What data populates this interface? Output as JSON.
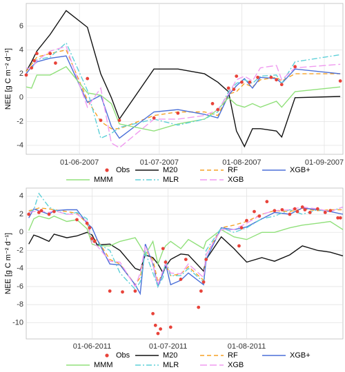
{
  "chart_data": [
    {
      "type": "line",
      "y_label": "NEE [g C m⁻² d⁻¹]",
      "xlim": [
        "2007-05-12",
        "2007-09-08"
      ],
      "ylim": [
        -4.75,
        7.9
      ],
      "xticks": [
        {
          "value": "2007-06-01",
          "label": "01-06-2007"
        },
        {
          "value": "2007-07-01",
          "label": "01-07-2007"
        },
        {
          "value": "2007-08-01",
          "label": "01-08-2007"
        },
        {
          "value": "2007-09-01",
          "label": "01-09-2007"
        }
      ],
      "yticks": [
        -4,
        -2,
        0,
        2,
        4,
        6
      ],
      "grid": true,
      "x": [
        "2007-05-12",
        "2007-05-14",
        "2007-05-16",
        "2007-05-21",
        "2007-05-27",
        "2007-06-04",
        "2007-06-09",
        "2007-06-13",
        "2007-06-16",
        "2007-06-29",
        "2007-07-08",
        "2007-07-18",
        "2007-07-23",
        "2007-07-27",
        "2007-07-30",
        "2007-08-02",
        "2007-08-05",
        "2007-08-08",
        "2007-08-14",
        "2007-08-16",
        "2007-08-21",
        "2007-09-07"
      ],
      "series": [
        {
          "name": "Obs",
          "color": "#e8433a",
          "style": "points",
          "x": [
            "2007-05-12",
            "2007-05-14",
            "2007-05-15",
            "2007-05-16",
            "2007-05-21",
            "2007-05-23",
            "2007-06-04",
            "2007-06-09",
            "2007-06-16",
            "2007-06-29",
            "2007-07-08",
            "2007-07-21",
            "2007-07-23",
            "2007-07-27",
            "2007-07-29",
            "2007-07-30",
            "2007-08-01",
            "2007-08-04",
            "2007-08-07",
            "2007-08-12",
            "2007-08-14",
            "2007-08-16",
            "2007-08-21",
            "2007-09-07"
          ],
          "values": [
            1.9,
            2.5,
            3.1,
            3.7,
            3.7,
            2.9,
            1.6,
            -1.9,
            -1.9,
            -1.7,
            -1.3,
            -0.5,
            -1.0,
            0.8,
            0.7,
            1.8,
            1.3,
            1.3,
            1.7,
            1.7,
            1.5,
            1.1,
            2.6,
            1.4
          ]
        },
        {
          "name": "M20",
          "color": "#111111",
          "style": "solid",
          "values": [
            2.2,
            3.0,
            3.9,
            5.3,
            7.3,
            5.9,
            2.0,
            0.0,
            -1.8,
            2.4,
            2.4,
            2.0,
            1.3,
            0.5,
            -2.8,
            -4.1,
            -2.6,
            -2.6,
            -2.8,
            -3.3,
            0.0,
            0.1
          ]
        },
        {
          "name": "RF",
          "color": "#f5a023",
          "style": "dashed",
          "values": [
            2.2,
            2.8,
            3.4,
            3.7,
            4.0,
            -0.2,
            -2.0,
            -2.6,
            -2.6,
            -1.5,
            -1.2,
            -1.2,
            -1.5,
            0.3,
            0.5,
            1.2,
            0.9,
            1.5,
            1.7,
            1.4,
            2.0,
            2.0
          ]
        },
        {
          "name": "XGB+",
          "color": "#4a6fd8",
          "style": "solid",
          "values": [
            2.0,
            2.6,
            3.0,
            3.3,
            3.5,
            -0.4,
            0.2,
            -2.4,
            -3.4,
            -1.2,
            -1.0,
            -1.4,
            -1.7,
            0.2,
            1.0,
            1.6,
            0.8,
            1.7,
            1.6,
            1.2,
            2.4,
            2.0
          ]
        },
        {
          "name": "MMM",
          "color": "#90e07a",
          "style": "solid",
          "values": [
            0.9,
            0.8,
            1.9,
            1.9,
            2.6,
            0.4,
            0.2,
            -0.5,
            -2.2,
            -2.8,
            -2.2,
            -1.8,
            -1.0,
            0.0,
            -0.6,
            -0.8,
            -0.5,
            -0.8,
            -0.3,
            -0.8,
            0.5,
            0.9
          ]
        },
        {
          "name": "MLR",
          "color": "#5dd0d8",
          "style": "dashdot",
          "values": [
            2.5,
            2.4,
            3.2,
            3.4,
            4.6,
            0.6,
            -3.4,
            -3.0,
            -2.5,
            -1.8,
            -2.3,
            -1.8,
            -1.2,
            0.5,
            1.2,
            1.5,
            1.2,
            1.8,
            1.9,
            1.2,
            3.0,
            3.6
          ]
        },
        {
          "name": "XGB",
          "color": "#f09af0",
          "style": "longdash",
          "values": [
            2.5,
            2.4,
            3.1,
            3.9,
            4.3,
            -0.8,
            0.8,
            -3.8,
            -4.2,
            -1.8,
            -1.8,
            -1.5,
            -1.0,
            0.3,
            1.5,
            1.8,
            1.4,
            2.5,
            2.7,
            1.5,
            2.5,
            2.8
          ]
        }
      ]
    },
    {
      "type": "line",
      "y_label": "NEE [g C m⁻² d⁻¹]",
      "xlim": [
        "2011-05-06",
        "2011-09-08"
      ],
      "ylim": [
        -11.8,
        4.9
      ],
      "xticks": [
        {
          "value": "2011-06-01",
          "label": "01-06-2011"
        },
        {
          "value": "2011-07-01",
          "label": "01-07-2011"
        },
        {
          "value": "2011-08-01",
          "label": "01-08-2011"
        }
      ],
      "yticks": [
        -10,
        -8,
        -6,
        -4,
        -2,
        0,
        2,
        4
      ],
      "grid": true,
      "x": [
        "2011-05-07",
        "2011-05-09",
        "2011-05-11",
        "2011-05-15",
        "2011-05-17",
        "2011-05-22",
        "2011-05-26",
        "2011-05-30",
        "2011-06-01",
        "2011-06-03",
        "2011-06-08",
        "2011-06-12",
        "2011-06-18",
        "2011-06-20",
        "2011-06-22",
        "2011-06-25",
        "2011-06-27",
        "2011-06-29",
        "2011-06-30",
        "2011-07-02",
        "2011-07-06",
        "2011-07-09",
        "2011-07-15",
        "2011-07-16",
        "2011-07-22",
        "2011-07-27",
        "2011-08-01",
        "2011-08-07",
        "2011-08-12",
        "2011-08-18",
        "2011-08-23",
        "2011-08-29",
        "2011-09-03",
        "2011-09-08"
      ],
      "series": [
        {
          "name": "Obs",
          "color": "#e8433a",
          "style": "points",
          "x": [
            "2011-05-07",
            "2011-05-11",
            "2011-05-12",
            "2011-05-15",
            "2011-05-17",
            "2011-05-26",
            "2011-05-30",
            "2011-05-31",
            "2011-06-01",
            "2011-06-02",
            "2011-06-08",
            "2011-06-13",
            "2011-06-18",
            "2011-06-25",
            "2011-06-26",
            "2011-06-27",
            "2011-06-28",
            "2011-06-29",
            "2011-06-30",
            "2011-07-02",
            "2011-07-06",
            "2011-07-08",
            "2011-07-13",
            "2011-07-14",
            "2011-07-15",
            "2011-07-16",
            "2011-07-29",
            "2011-07-30",
            "2011-08-01",
            "2011-08-04",
            "2011-08-06",
            "2011-08-09",
            "2011-08-12",
            "2011-08-15",
            "2011-08-18",
            "2011-08-20",
            "2011-08-21",
            "2011-08-23",
            "2011-08-24",
            "2011-08-26",
            "2011-08-29",
            "2011-09-01",
            "2011-09-03",
            "2011-09-06",
            "2011-09-07"
          ],
          "values": [
            2.0,
            2.2,
            2.4,
            2.0,
            2.3,
            1.4,
            1.0,
            0.5,
            -0.7,
            -1.0,
            -6.5,
            -6.6,
            -6.5,
            -9.0,
            -10.3,
            -11.2,
            -10.7,
            -1.8,
            -3.3,
            -10.5,
            -5.2,
            -3.0,
            -8.3,
            -6.5,
            -5.5,
            -3.0,
            -1.5,
            0.5,
            1.3,
            2.3,
            1.8,
            3.4,
            2.4,
            2.5,
            2.0,
            2.6,
            2.3,
            2.8,
            2.5,
            2.2,
            2.6,
            2.2,
            2.4,
            1.6,
            1.6
          ]
        },
        {
          "name": "M20",
          "color": "#111111",
          "style": "solid",
          "values": [
            -1.3,
            -0.3,
            -0.5,
            -1.0,
            -0.2,
            -0.6,
            -0.4,
            0.0,
            -0.3,
            -1.4,
            -1.3,
            -2.0,
            -4.0,
            -4.2,
            -2.5,
            -2.8,
            -3.5,
            -4.5,
            -3.8,
            -3.0,
            -2.4,
            -2.5,
            -4.3,
            -3.0,
            -0.5,
            -1.8,
            -3.3,
            -2.8,
            -3.2,
            -2.5,
            -1.5,
            -2.0,
            -2.2,
            -2.6
          ]
        },
        {
          "name": "RF",
          "color": "#f5a023",
          "style": "dashed",
          "values": [
            2.4,
            2.5,
            2.7,
            2.6,
            2.5,
            2.3,
            2.1,
            1.0,
            -1.0,
            -0.8,
            -3.0,
            -3.5,
            -5.8,
            -5.0,
            -2.0,
            -3.0,
            -5.5,
            -4.5,
            -3.5,
            -4.8,
            -4.6,
            -3.8,
            -5.3,
            -2.5,
            0.5,
            0.8,
            1.2,
            2.0,
            2.4,
            2.3,
            2.6,
            2.4,
            2.5,
            2.5
          ]
        },
        {
          "name": "XGB+",
          "color": "#4a6fd8",
          "style": "solid",
          "values": [
            1.6,
            2.6,
            2.4,
            2.0,
            2.4,
            2.5,
            2.5,
            1.0,
            0.5,
            -0.8,
            -3.5,
            -3.6,
            -5.8,
            -6.8,
            -1.3,
            -3.5,
            -6.0,
            -4.5,
            -3.5,
            -5.8,
            -5.3,
            -4.5,
            -5.8,
            -3.0,
            0.5,
            0.3,
            0.6,
            1.5,
            2.2,
            2.0,
            2.7,
            2.5,
            2.3,
            2.0
          ]
        },
        {
          "name": "MMM",
          "color": "#90e07a",
          "style": "solid",
          "values": [
            0.2,
            1.5,
            1.8,
            1.5,
            1.8,
            1.2,
            1.4,
            0.4,
            -1.3,
            -1.5,
            -1.5,
            -1.0,
            -0.6,
            -1.5,
            -2.5,
            -1.0,
            -3.5,
            -2.0,
            -1.5,
            -1.0,
            -1.8,
            -0.8,
            -1.8,
            -1.0,
            0.3,
            -0.5,
            -0.8,
            0.0,
            0.0,
            0.5,
            0.8,
            1.0,
            1.2,
            0.3
          ]
        },
        {
          "name": "MLR",
          "color": "#5dd0d8",
          "style": "dashdot",
          "values": [
            2.2,
            2.5,
            4.3,
            2.8,
            2.5,
            2.0,
            2.2,
            1.5,
            -1.0,
            -1.2,
            -2.0,
            -4.5,
            -6.3,
            -5.5,
            -2.2,
            -4.5,
            -6.0,
            -5.0,
            -3.0,
            -4.8,
            -4.8,
            -4.0,
            -5.5,
            -2.0,
            0.5,
            0.0,
            0.5,
            1.5,
            1.8,
            2.5,
            2.0,
            2.5,
            2.3,
            2.8
          ]
        },
        {
          "name": "XGB",
          "color": "#f09af0",
          "style": "longdash",
          "values": [
            2.2,
            2.3,
            2.4,
            2.2,
            2.4,
            2.0,
            2.0,
            1.2,
            -1.2,
            -1.5,
            -3.2,
            -3.3,
            -6.0,
            -4.5,
            -1.5,
            -3.5,
            -5.8,
            -4.2,
            -3.5,
            -4.5,
            -4.6,
            -3.5,
            -5.0,
            -2.5,
            0.3,
            0.3,
            1.0,
            2.0,
            2.4,
            2.5,
            2.8,
            2.6,
            2.3,
            2.8
          ]
        }
      ]
    }
  ]
}
